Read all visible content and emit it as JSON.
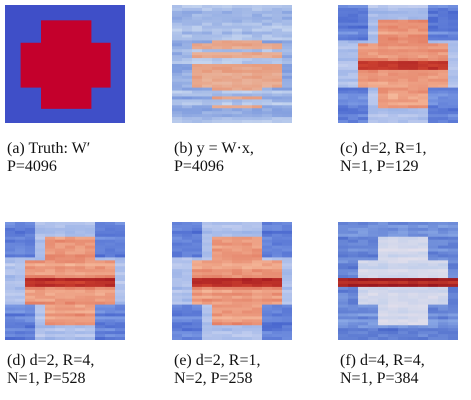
{
  "panels": [
    {
      "label": "(a)",
      "lines": [
        "Truth: W′",
        "P=4096"
      ]
    },
    {
      "label": "(b)",
      "lines": [
        "y = W·x,",
        "P=4096"
      ]
    },
    {
      "label": "(c)",
      "lines": [
        "d=2, R=1,",
        "N=1, P=129"
      ]
    },
    {
      "label": "(d)",
      "lines": [
        "d=2, R=4,",
        "N=1, P=528"
      ]
    },
    {
      "label": "(e)",
      "lines": [
        "d=2, R=1,",
        "N=2, P=258"
      ]
    },
    {
      "label": "(f)",
      "lines": [
        "d=4, R=4,",
        "N=1, P=384"
      ]
    }
  ]
}
